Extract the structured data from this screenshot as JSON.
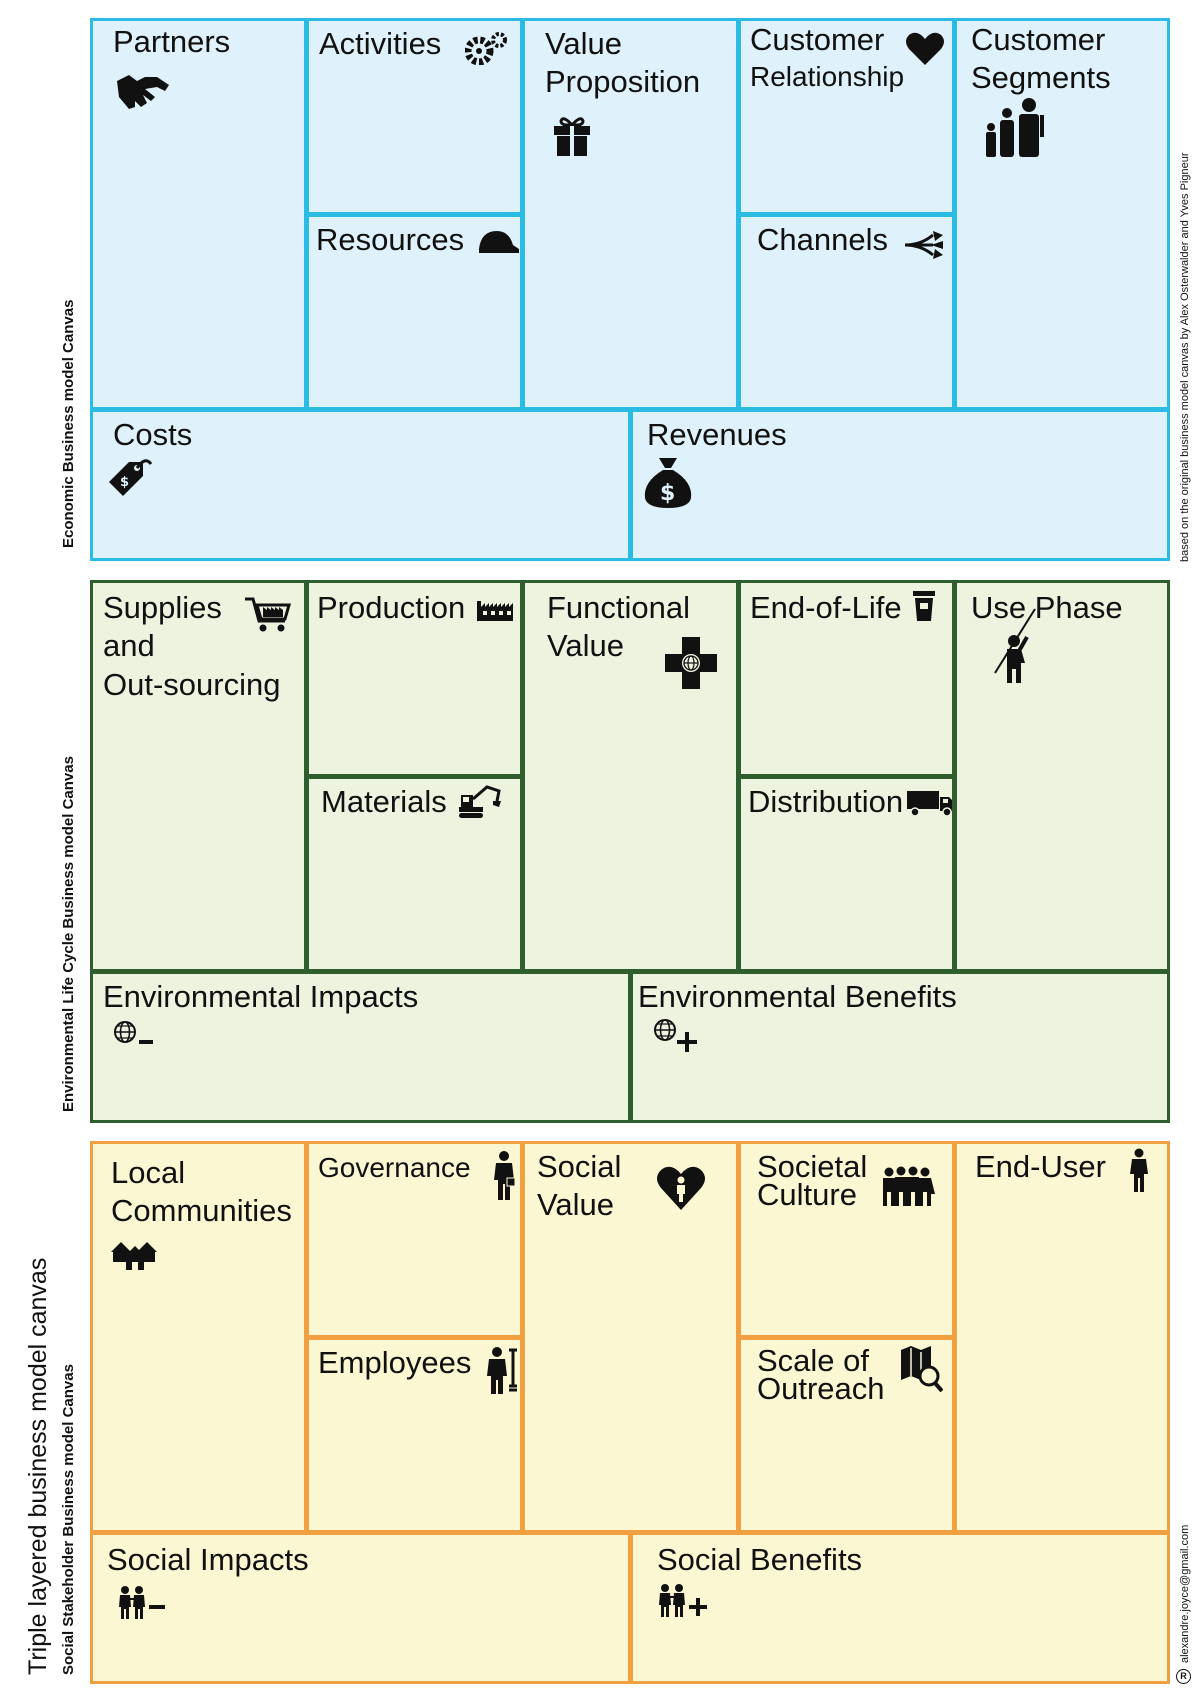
{
  "colors": {
    "economic_fill": "#dff1fa",
    "economic_line": "#2bbce6",
    "environmental_fill": "#eef3e0",
    "environmental_line": "#2f5e2e",
    "social_fill": "#faf7d2",
    "social_line": "#f0a040"
  },
  "side_labels": {
    "triple": "Triple layered business model canvas",
    "economic": "Economic Business model Canvas",
    "environmental": "Environmental Life Cycle Business model Canvas",
    "social": "Social Stakeholder Business model Canvas",
    "credit": "based on the original business model canvas by Alex Osterwalder and Yves Pigneur",
    "email": "alexandre.joyce@gmail.com",
    "registered": "R"
  },
  "economic": {
    "partners": {
      "label": "Partners",
      "icon": "handshake-icon"
    },
    "activities": {
      "label": "Activities",
      "icon": "gears-icon"
    },
    "resources": {
      "label": "Resources",
      "icon": "hardhat-icon"
    },
    "value_proposition": {
      "line1": "Value",
      "line2": "Proposition",
      "icon": "gift-icon"
    },
    "customer_relationship": {
      "line1": "Customer",
      "line2": "Relationship",
      "icon": "heart-icon"
    },
    "channels": {
      "label": "Channels",
      "icon": "channels-arrows-icon"
    },
    "customer_segments": {
      "line1": "Customer",
      "line2": "Segments",
      "icon": "family-icon"
    },
    "costs": {
      "label": "Costs",
      "icon": "price-tag-icon"
    },
    "revenues": {
      "label": "Revenues",
      "icon": "money-bag-icon"
    }
  },
  "environmental": {
    "supplies": {
      "line1": "Supplies",
      "line2": "and",
      "line3": "Out-sourcing",
      "icon": "shopping-cart-icon"
    },
    "production": {
      "label": "Production",
      "icon": "factory-icon"
    },
    "materials": {
      "label": "Materials",
      "icon": "excavator-icon"
    },
    "functional_value": {
      "line1": "Functional",
      "line2": "Value",
      "icon": "cross-globe-icon"
    },
    "end_of_life": {
      "label": "End-of-Life",
      "icon": "trash-bin-icon"
    },
    "distribution": {
      "label": "Distribution",
      "icon": "truck-icon"
    },
    "use_phase": {
      "label": "Use Phase",
      "icon": "person-with-rod-icon"
    },
    "environmental_impacts": {
      "label": "Environmental Impacts",
      "icon": "globe-minus-icon"
    },
    "environmental_benefits": {
      "label": "Environmental Benefits",
      "icon": "globe-plus-icon"
    }
  },
  "social": {
    "local_communities": {
      "line1": "Local",
      "line2": "Communities",
      "icon": "houses-icon"
    },
    "governance": {
      "label": "Governance",
      "icon": "businessman-icon"
    },
    "employees": {
      "label": "Employees",
      "icon": "worker-icon"
    },
    "social_value": {
      "line1": "Social",
      "line2": "Value",
      "icon": "heart-person-icon"
    },
    "societal_culture": {
      "line1": "Societal",
      "line2": "Culture",
      "icon": "crowd-icon"
    },
    "scale_of_outreach": {
      "line1": "Scale of",
      "line2": "Outreach",
      "icon": "map-magnifier-icon"
    },
    "end_user": {
      "label": "End-User",
      "icon": "person-icon"
    },
    "social_impacts": {
      "label": "Social Impacts",
      "icon": "people-minus-icon"
    },
    "social_benefits": {
      "label": "Social Benefits",
      "icon": "people-plus-icon"
    }
  }
}
